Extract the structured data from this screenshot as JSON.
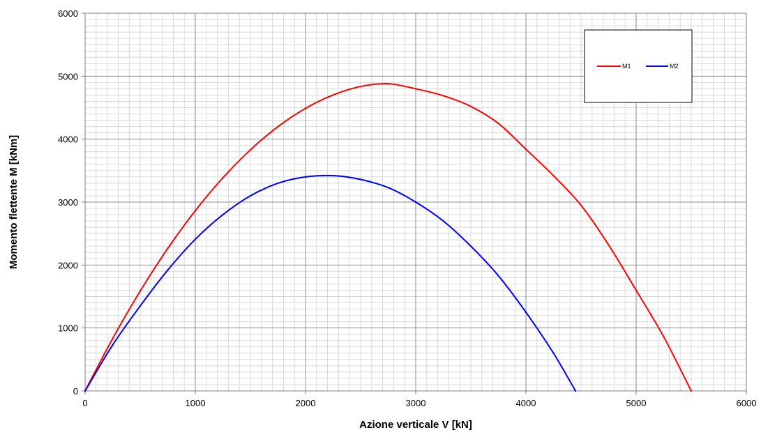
{
  "chart_data": {
    "type": "line",
    "title": "",
    "xlabel": "Azione verticale V [kN]",
    "ylabel": "Momento flettente M [kNm]",
    "xlim": [
      0,
      6000
    ],
    "ylim": [
      0,
      6000
    ],
    "x_ticks": [
      "0",
      "1000",
      "2000",
      "3000",
      "4000",
      "5000",
      "6000"
    ],
    "y_ticks": [
      "0",
      "1000",
      "2000",
      "3000",
      "4000",
      "5000",
      "6000"
    ],
    "grid": true,
    "legend_position": "top-right",
    "series": [
      {
        "name": "M1",
        "color": "#ff0000",
        "x": [
          0,
          250,
          500,
          750,
          1000,
          1250,
          1500,
          1750,
          2000,
          2250,
          2500,
          2750,
          3000,
          3250,
          3500,
          3750,
          4000,
          4250,
          4500,
          4750,
          5000,
          5250,
          5500
        ],
        "y": [
          0,
          832,
          1587,
          2264,
          2864,
          3386,
          3831,
          4199,
          4489,
          4701,
          4837,
          4881,
          4800,
          4690,
          4520,
          4250,
          3840,
          3420,
          2950,
          2320,
          1600,
          860,
          0
        ]
      },
      {
        "name": "M2",
        "color": "#0000ff",
        "x": [
          0,
          250,
          500,
          750,
          1000,
          1250,
          1500,
          1750,
          2000,
          2250,
          2500,
          2750,
          3000,
          3250,
          3500,
          3750,
          4000,
          4250,
          4450
        ],
        "y": [
          0,
          730,
          1350,
          1920,
          2410,
          2800,
          3100,
          3300,
          3400,
          3420,
          3360,
          3230,
          3000,
          2700,
          2300,
          1830,
          1250,
          600,
          0
        ]
      }
    ]
  }
}
